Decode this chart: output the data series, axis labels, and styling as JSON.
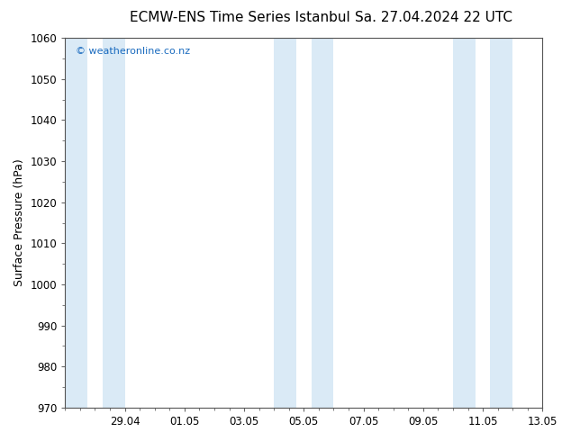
{
  "title_left": "ECMW-ENS Time Series Istanbul",
  "title_right": "Sa. 27.04.2024 22 UTC",
  "ylabel": "Surface Pressure (hPa)",
  "ylim": [
    970,
    1060
  ],
  "yticks": [
    970,
    980,
    990,
    1000,
    1010,
    1020,
    1030,
    1040,
    1050,
    1060
  ],
  "xlim": [
    0,
    16
  ],
  "xtick_positions": [
    2,
    4,
    6,
    8,
    10,
    12,
    14,
    16
  ],
  "xtick_labels": [
    "29.04",
    "01.05",
    "03.05",
    "05.05",
    "07.05",
    "09.05",
    "11.05",
    "13.05"
  ],
  "shaded_bands": [
    {
      "x_start": 0.0,
      "x_end": 0.75,
      "color": "#daeaf6"
    },
    {
      "x_start": 1.25,
      "x_end": 2.0,
      "color": "#daeaf6"
    },
    {
      "x_start": 7.0,
      "x_end": 7.75,
      "color": "#daeaf6"
    },
    {
      "x_start": 8.25,
      "x_end": 9.0,
      "color": "#daeaf6"
    },
    {
      "x_start": 13.0,
      "x_end": 13.75,
      "color": "#daeaf6"
    },
    {
      "x_start": 14.25,
      "x_end": 15.0,
      "color": "#daeaf6"
    }
  ],
  "watermark_text": "© weatheronline.co.nz",
  "watermark_color": "#1a6bbf",
  "background_color": "#ffffff",
  "plot_bg_color": "#ffffff",
  "title_fontsize": 11,
  "tick_fontsize": 8.5,
  "ylabel_fontsize": 9,
  "minor_tick_interval": 0.5
}
